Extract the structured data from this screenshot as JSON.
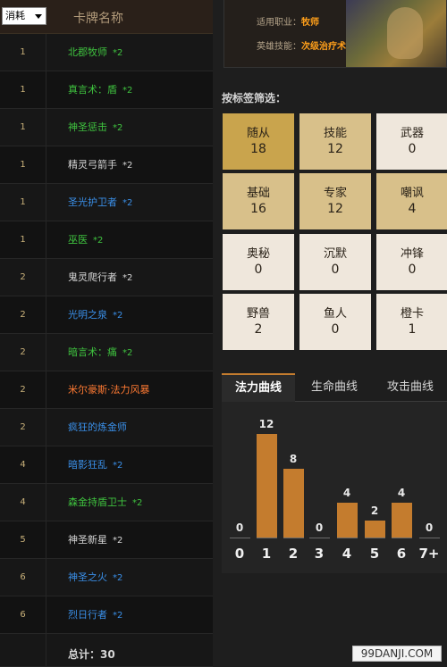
{
  "deck": {
    "sort_label": "消耗",
    "name_header": "卡牌名称",
    "cards": [
      {
        "cost": "1",
        "name": "北郡牧师",
        "count": "*2",
        "color": "green"
      },
      {
        "cost": "1",
        "name": "真言术：盾",
        "count": "*2",
        "color": "green"
      },
      {
        "cost": "1",
        "name": "神圣惩击",
        "count": "*2",
        "color": "green"
      },
      {
        "cost": "1",
        "name": "精灵弓箭手",
        "count": "*2",
        "color": "white"
      },
      {
        "cost": "1",
        "name": "圣光护卫者",
        "count": "*2",
        "color": "blue"
      },
      {
        "cost": "1",
        "name": "巫医",
        "count": "*2",
        "color": "green"
      },
      {
        "cost": "2",
        "name": "鬼灵爬行者",
        "count": "*2",
        "color": "white"
      },
      {
        "cost": "2",
        "name": "光明之泉",
        "count": "*2",
        "color": "blue"
      },
      {
        "cost": "2",
        "name": "暗言术：痛",
        "count": "*2",
        "color": "green"
      },
      {
        "cost": "2",
        "name": "米尔豪斯·法力风暴",
        "count": "",
        "color": "orange"
      },
      {
        "cost": "2",
        "name": "疯狂的炼金师",
        "count": "",
        "color": "blue"
      },
      {
        "cost": "4",
        "name": "暗影狂乱",
        "count": "*2",
        "color": "blue"
      },
      {
        "cost": "4",
        "name": "森金持盾卫士",
        "count": "*2",
        "color": "green"
      },
      {
        "cost": "5",
        "name": "神圣新星",
        "count": "*2",
        "color": "white"
      },
      {
        "cost": "6",
        "name": "神圣之火",
        "count": "*2",
        "color": "blue"
      },
      {
        "cost": "6",
        "name": "烈日行者",
        "count": "*2",
        "color": "blue"
      }
    ],
    "total": "总计：30"
  },
  "hero": {
    "class_label": "适用职业：",
    "class_value": "牧师",
    "skill_label": "英雄技能：",
    "skill_value": "次级治疗术"
  },
  "filter": {
    "title": "按标签筛选：",
    "tiles": [
      {
        "label": "随从",
        "count": "18",
        "style": "gold"
      },
      {
        "label": "技能",
        "count": "12",
        "style": "tan"
      },
      {
        "label": "武器",
        "count": "0",
        "style": "light"
      },
      {
        "label": "基础",
        "count": "16",
        "style": "tan"
      },
      {
        "label": "专家",
        "count": "12",
        "style": "tan"
      },
      {
        "label": "嘲讽",
        "count": "4",
        "style": "tan"
      },
      {
        "label": "奥秘",
        "count": "0",
        "style": "light"
      },
      {
        "label": "沉默",
        "count": "0",
        "style": "light"
      },
      {
        "label": "冲锋",
        "count": "0",
        "style": "light"
      },
      {
        "label": "野兽",
        "count": "2",
        "style": "light"
      },
      {
        "label": "鱼人",
        "count": "0",
        "style": "light"
      },
      {
        "label": "橙卡",
        "count": "1",
        "style": "light"
      }
    ]
  },
  "tabs": [
    {
      "label": "法力曲线",
      "active": true
    },
    {
      "label": "生命曲线",
      "active": false
    },
    {
      "label": "攻击曲线",
      "active": false
    }
  ],
  "chart_data": {
    "type": "bar",
    "categories": [
      "0",
      "1",
      "2",
      "3",
      "4",
      "5",
      "6",
      "7+"
    ],
    "values": [
      0,
      12,
      8,
      0,
      4,
      2,
      4,
      0
    ],
    "title": "",
    "xlabel": "",
    "ylabel": "",
    "ylim": [
      0,
      12
    ],
    "bar_color": "#c47c2e",
    "grid": false
  },
  "watermark": "99DANJI.COM"
}
